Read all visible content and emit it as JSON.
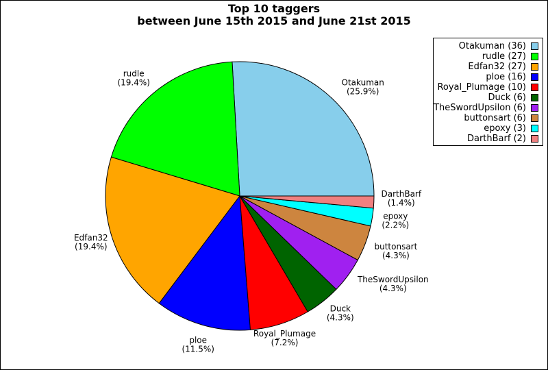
{
  "chart_data": {
    "type": "pie",
    "title": "Top 10 taggers",
    "subtitle": "between June 15th 2015 and June 21st 2015",
    "legend_position": "top-right",
    "slices": [
      {
        "name": "Otakuman",
        "value": 36,
        "percent_label": "(25.9%)",
        "legend_label": "Otakuman (36)",
        "color": "#87CEEB"
      },
      {
        "name": "rudle",
        "value": 27,
        "percent_label": "(19.4%)",
        "legend_label": "rudle (27)",
        "color": "#00FF00"
      },
      {
        "name": "Edfan32",
        "value": 27,
        "percent_label": "(19.4%)",
        "legend_label": "Edfan32 (27)",
        "color": "#FFA500"
      },
      {
        "name": "ploe",
        "value": 16,
        "percent_label": "(11.5%)",
        "legend_label": "ploe (16)",
        "color": "#0000FF"
      },
      {
        "name": "Royal_Plumage",
        "value": 10,
        "percent_label": "(7.2%)",
        "legend_label": "Royal_Plumage (10)",
        "color": "#FF0000"
      },
      {
        "name": "Duck",
        "value": 6,
        "percent_label": "(4.3%)",
        "legend_label": "Duck (6)",
        "color": "#006400"
      },
      {
        "name": "TheSwordUpsilon",
        "value": 6,
        "percent_label": "(4.3%)",
        "legend_label": "TheSwordUpsilon (6)",
        "color": "#A020F0"
      },
      {
        "name": "buttonsart",
        "value": 6,
        "percent_label": "(4.3%)",
        "legend_label": "buttonsart (6)",
        "color": "#CD853F"
      },
      {
        "name": "epoxy",
        "value": 3,
        "percent_label": "(2.2%)",
        "legend_label": "epoxy (3)",
        "color": "#00FFFF"
      },
      {
        "name": "DarthBarf",
        "value": 2,
        "percent_label": "(1.4%)",
        "legend_label": "DarthBarf (2)",
        "color": "#F08080"
      }
    ]
  }
}
